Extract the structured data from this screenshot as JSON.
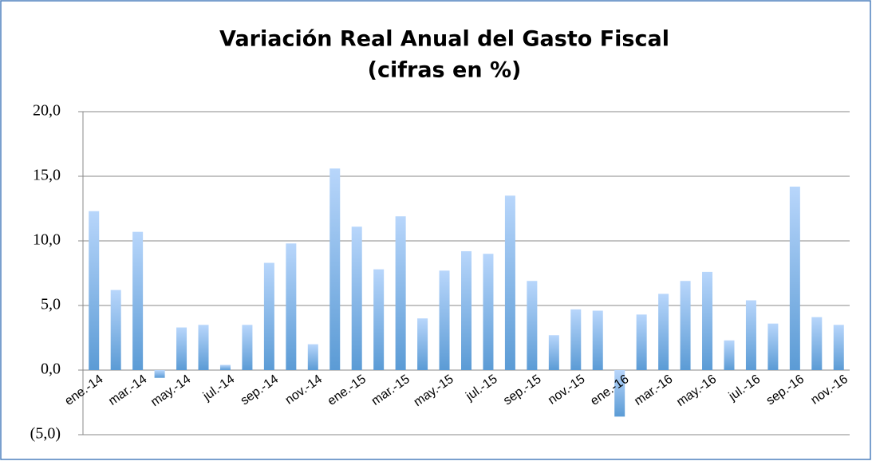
{
  "chart_data": {
    "type": "bar",
    "title": [
      "Variación Real Anual del Gasto Fiscal",
      "(cifras en %)"
    ],
    "categories": [
      "ene.-14",
      null,
      "mar.-14",
      null,
      "may.-14",
      null,
      "jul.-14",
      null,
      "sep.-14",
      null,
      "nov.-14",
      null,
      "ene.-15",
      null,
      "mar.-15",
      null,
      "may.-15",
      null,
      "jul.-15",
      null,
      "sep.-15",
      null,
      "nov.-15",
      null,
      "ene.-16",
      null,
      "mar.-16",
      null,
      "may.-16",
      null,
      "jul.-16",
      null,
      "sep.-16",
      null,
      "nov.-16"
    ],
    "values": [
      12.3,
      6.2,
      10.7,
      -0.6,
      3.3,
      3.5,
      0.4,
      3.5,
      8.3,
      9.8,
      2.0,
      15.6,
      11.1,
      7.8,
      11.9,
      4.0,
      7.7,
      9.2,
      9.0,
      13.5,
      6.9,
      2.7,
      4.7,
      4.6,
      -3.6,
      4.3,
      5.9,
      6.9,
      7.6,
      2.3,
      5.4,
      3.6,
      14.2,
      4.1,
      3.5
    ],
    "color": "#5b9bd5",
    "ylim": [
      -5,
      20
    ],
    "yticks": [
      {
        "value": -5,
        "label": "(5,0)"
      },
      {
        "value": 0,
        "label": "0,0"
      },
      {
        "value": 5,
        "label": "5,0"
      },
      {
        "value": 10,
        "label": "10,0"
      },
      {
        "value": 15,
        "label": "15,0"
      },
      {
        "value": 20,
        "label": "20,0"
      }
    ],
    "grid": true
  }
}
